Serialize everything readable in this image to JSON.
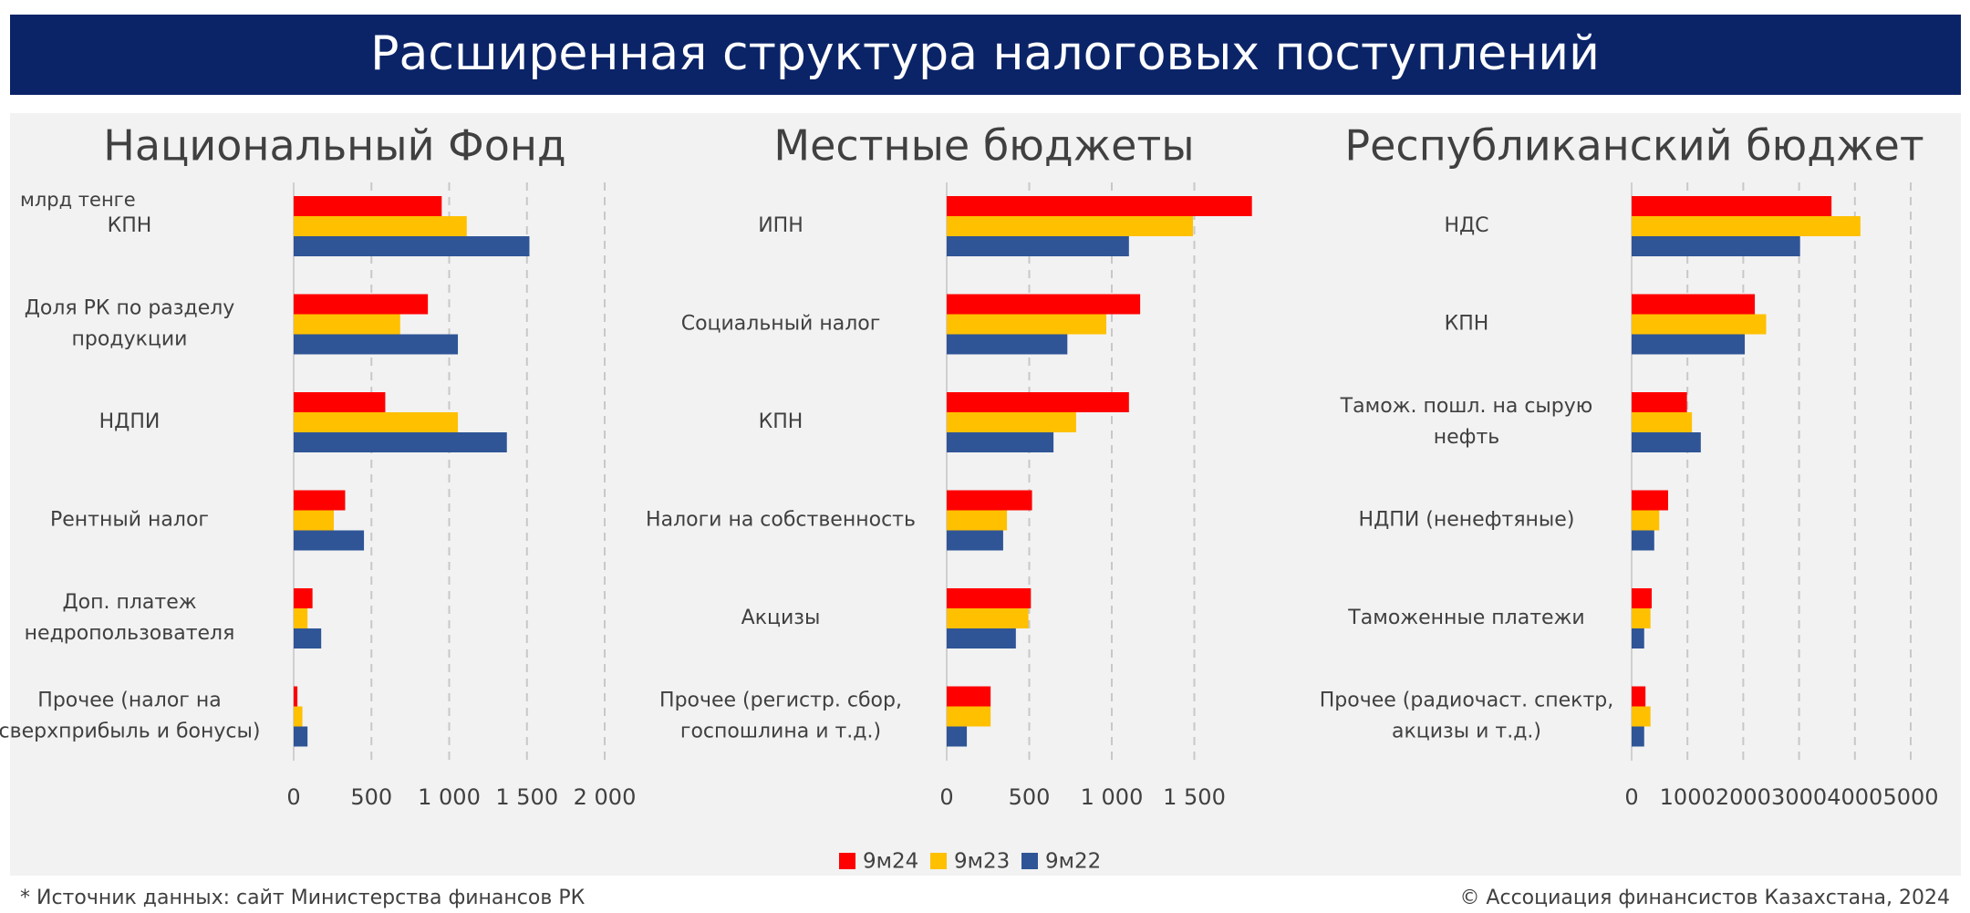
{
  "title": "Расширенная структура налоговых поступлений",
  "source": "* Источник данных: сайт Министерства финансов РК",
  "copyright": "© Ассоциация финансистов Казахстана, 2024",
  "chart_data": [
    {
      "type": "bar",
      "orientation": "horizontal",
      "title": "Национальный Фонд",
      "unit": "млрд тенге",
      "categories": [
        "КПН",
        "Доля РК по разделу\nпродукции",
        "НДПИ",
        "Рентный налог",
        "Доп. платеж\nнедропользователя",
        "Прочее (налог на\nсверхприбыль и бонусы)"
      ],
      "series": [
        {
          "name": "9м24",
          "color": "#ff0000",
          "values": [
            952,
            863,
            589,
            331,
            121,
            24
          ]
        },
        {
          "name": "9м23",
          "color": "#ffc000",
          "values": [
            1113,
            685,
            1056,
            258,
            89,
            56
          ]
        },
        {
          "name": "9м22",
          "color": "#2f5597",
          "values": [
            1516,
            1056,
            1371,
            452,
            177,
            89
          ]
        }
      ],
      "xlim": [
        0,
        2000
      ],
      "xticks": [
        0,
        500,
        {
          "value": 1000,
          "label": "1 000"
        },
        {
          "value": 1500,
          "label": "1 500"
        },
        {
          "value": 2000,
          "label": "2 000"
        }
      ],
      "grid": true
    },
    {
      "type": "bar",
      "orientation": "horizontal",
      "title": "Местные бюджеты",
      "categories": [
        "ИПН",
        "Социальный налог",
        "КПН",
        "Налоги на собственность",
        "Акцизы",
        "Прочее (регистр. сбор,\nгоспошлина и т.д.)"
      ],
      "series": [
        {
          "name": "9м24",
          "color": "#ff0000",
          "values": [
            1849,
            1172,
            1104,
            517,
            510,
            266
          ]
        },
        {
          "name": "9м23",
          "color": "#ffc000",
          "values": [
            1492,
            967,
            784,
            365,
            495,
            266
          ]
        },
        {
          "name": "9м22",
          "color": "#2f5597",
          "values": [
            1104,
            731,
            647,
            342,
            419,
            122
          ]
        }
      ],
      "xlim": [
        0,
        2000
      ],
      "xticks": [
        0,
        500,
        {
          "value": 1000,
          "label": "1 000"
        },
        {
          "value": 1500,
          "label": "1 500"
        }
      ],
      "grid": true
    },
    {
      "type": "bar",
      "orientation": "horizontal",
      "title": "Республиканский бюджет",
      "categories": [
        "НДС",
        "КПН",
        "Тамож. пошл. на сырую\nнефть",
        "НДПИ (ненефтяные)",
        "Таможенные платежи",
        "Прочее (радиочаст. спектр,\nакцизы и т.д.)"
      ],
      "series": [
        {
          "name": "9м24",
          "color": "#ff0000",
          "values": [
            3581,
            2207,
            991,
            653,
            360,
            248
          ]
        },
        {
          "name": "9м23",
          "color": "#ffc000",
          "values": [
            4099,
            2410,
            1081,
            495,
            338,
            338
          ]
        },
        {
          "name": "9м22",
          "color": "#2f5597",
          "values": [
            3018,
            2027,
            1239,
            405,
            225,
            225
          ]
        }
      ],
      "xlim": [
        0,
        5000
      ],
      "xticks": [
        0,
        1000,
        2000,
        3000,
        4000,
        5000
      ],
      "grid": true
    }
  ]
}
